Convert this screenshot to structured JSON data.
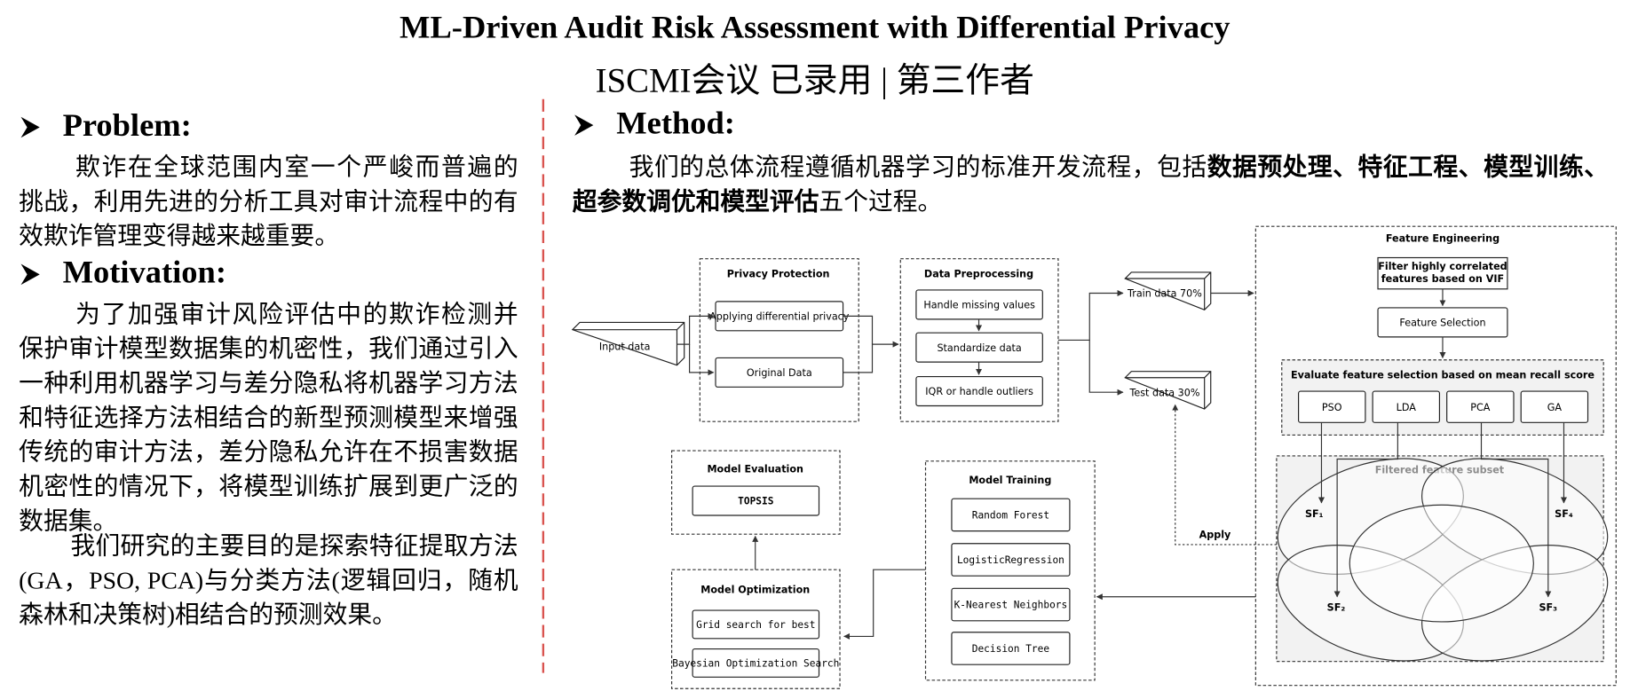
{
  "header": {
    "title": "ML-Driven Audit Risk Assessment with Differential Privacy",
    "subtitle": "ISCMI会议 已录用 | 第三作者"
  },
  "problem": {
    "heading": "Problem:",
    "text": "欺诈在全球范围内室一个严峻而普遍的挑战，利用先进的分析工具对审计流程中的有效欺诈管理变得越来越重要。"
  },
  "motivation": {
    "heading": "Motivation:",
    "paragraphs": [
      "为了加强审计风险评估中的欺诈检测并保护审计模型数据集的机密性，我们通过引入一种利用机器学习与差分隐私将机器学习方法和特征选择方法相结合的新型预测模型来增强传统的审计方法，差分隐私允许在不损害数据机密性的情况下，将模型训练扩展到更广泛的数据集。",
      "我们研究的主要目的是探索特征提取方法(GA，PSO, PCA)与分类方法(逻辑回归，随机森林和决策树)相结合的预测效果。"
    ]
  },
  "method": {
    "heading": "Method:",
    "text_before": "我们的总体流程遵循机器学习的标准开发流程，包括",
    "text_bold": "数据预处理、特征工程、模型训练、超参数调优和模型评估",
    "text_after": "五个过程。"
  },
  "diagram": {
    "input": "Input data",
    "privacy": {
      "title": "Privacy Protection",
      "items": [
        "Applying differential privacy",
        "Original Data"
      ]
    },
    "preprocessing": {
      "title": "Data Preprocessing",
      "items": [
        "Handle missing values",
        "Standardize data",
        "IQR or handle outliers"
      ]
    },
    "split": [
      "Train data 70%",
      "Test data 30%"
    ],
    "feature_engineering": {
      "title": "Feature Engineering",
      "filter": [
        "Filter highly correlated",
        "features based on VIF"
      ],
      "selection": "Feature Selection",
      "evaluate": "Evaluate feature selection based on mean recall score",
      "methods": [
        "PSO",
        "LDA",
        "PCA",
        "GA"
      ],
      "subset_title": "Filtered feature subset",
      "subsets": [
        "SF₁",
        "SF₂",
        "SF₃",
        "SF₄"
      ]
    },
    "apply": "Apply",
    "training": {
      "title": "Model Training",
      "items": [
        "Random Forest",
        "LogisticRegression",
        "K-Nearest Neighbors",
        "Decision Tree"
      ]
    },
    "evaluation": {
      "title": "Model Evaluation",
      "items": [
        "TOPSIS"
      ]
    },
    "optimization": {
      "title": "Model Optimization",
      "items": [
        "Grid search for best",
        "Bayesian Optimization Search"
      ]
    }
  }
}
